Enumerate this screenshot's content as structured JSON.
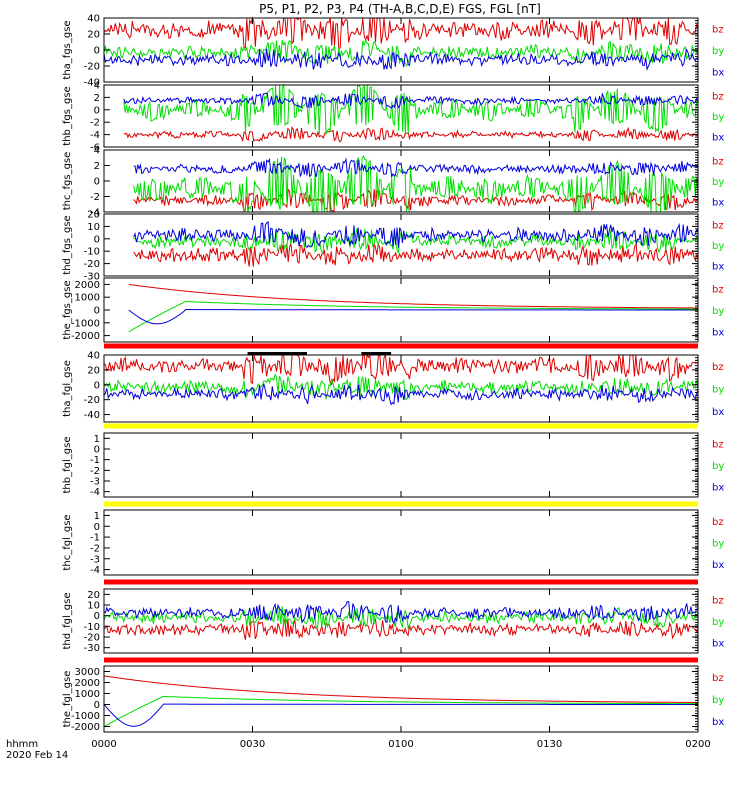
{
  "chart_data": {
    "type": "line",
    "title": "P5, P1, P2, P3, P4 (TH-A,B,C,D,E) FGS, FGL [nT]",
    "xaxis": {
      "label_line1": "hhmm",
      "label_line2": "2020 Feb 14",
      "ticks": [
        "0000",
        "0030",
        "0100",
        "0130",
        "0200"
      ],
      "range_minutes": [
        0,
        120
      ]
    },
    "colors": {
      "bz": "#dd0000",
      "by": "#00dd00",
      "bx": "#0000dd",
      "bar_red": "#ff0000",
      "bar_yellow": "#ffff00",
      "bar_black": "#000000"
    },
    "panels": [
      {
        "ylabel": "tha_fgs_gse",
        "ylim": [
          -40,
          40
        ],
        "yticks": [
          "40",
          "20",
          "0",
          "-20",
          "-40"
        ],
        "legend": [
          "bz",
          "by",
          "bx"
        ],
        "series": [
          {
            "name": "bz",
            "base": 25,
            "amp": 12,
            "noise": 6,
            "data_start": 0,
            "data_end": 120
          },
          {
            "name": "by",
            "base": -3,
            "amp": 8,
            "noise": 5,
            "data_start": 0,
            "data_end": 120
          },
          {
            "name": "bx",
            "base": -12,
            "amp": 6,
            "noise": 5,
            "data_start": 0,
            "data_end": 120
          }
        ]
      },
      {
        "ylabel": "thb_fgs_gse",
        "ylim": [
          -6,
          4
        ],
        "yticks": [
          "4",
          "2",
          "0",
          "-2",
          "-4",
          "-6"
        ],
        "legend": [
          "bz",
          "by",
          "bx"
        ],
        "series": [
          {
            "name": "bz",
            "base": -4,
            "amp": 0.6,
            "noise": 0.3,
            "data_start": 4,
            "data_end": 120
          },
          {
            "name": "by",
            "base": 0,
            "amp": 2.5,
            "noise": 0.4,
            "data_start": 4,
            "data_end": 120
          },
          {
            "name": "bx",
            "base": 1.5,
            "amp": 0.6,
            "noise": 0.3,
            "data_start": 4,
            "data_end": 120
          }
        ]
      },
      {
        "ylabel": "thc_fgs_gse",
        "ylim": [
          -4,
          4
        ],
        "yticks": [
          "4",
          "2",
          "0",
          "-2",
          "-4"
        ],
        "legend": [
          "bz",
          "by",
          "bx"
        ],
        "series": [
          {
            "name": "bz",
            "base": -2.5,
            "amp": 0.8,
            "noise": 0.3,
            "data_start": 6,
            "data_end": 120
          },
          {
            "name": "by",
            "base": -1,
            "amp": 2.5,
            "noise": 0.4,
            "data_start": 6,
            "data_end": 120
          },
          {
            "name": "bx",
            "base": 1.6,
            "amp": 0.6,
            "noise": 0.3,
            "data_start": 6,
            "data_end": 120
          }
        ]
      },
      {
        "ylabel": "thd_fgs_gse",
        "ylim": [
          -30,
          20
        ],
        "yticks": [
          "20",
          "10",
          "0",
          "-10",
          "-20",
          "-30"
        ],
        "legend": [
          "bz",
          "by",
          "bx"
        ],
        "series": [
          {
            "name": "bz",
            "base": -13,
            "amp": 4,
            "noise": 4,
            "data_start": 6,
            "data_end": 120
          },
          {
            "name": "by",
            "base": -2,
            "amp": 5,
            "noise": 3,
            "data_start": 6,
            "data_end": 120
          },
          {
            "name": "bx",
            "base": 3,
            "amp": 5,
            "noise": 3,
            "data_start": 6,
            "data_end": 120
          }
        ]
      },
      {
        "ylabel": "the_fgs_gse",
        "ylim": [
          -2500,
          2500
        ],
        "yticks": [
          "2000",
          "1000",
          "0",
          "-1000",
          "-2000"
        ],
        "legend": [
          "bz",
          "by",
          "bx"
        ],
        "series": [
          {
            "name": "bz",
            "base": 0,
            "amp": 0,
            "noise": 0,
            "data_start": 5,
            "data_end": 120,
            "decay_start": 2000,
            "decay_end": 80
          },
          {
            "name": "by",
            "base": 0,
            "amp": 0,
            "noise": 0,
            "data_start": 5,
            "data_end": 120,
            "decay_start": 900,
            "decay_end": 40,
            "ramp_from": -1700
          },
          {
            "name": "bx",
            "base": 0,
            "amp": 0,
            "noise": 0,
            "data_start": 5,
            "data_end": 120,
            "decay_start": 50,
            "decay_end": 0,
            "dip": -1200
          }
        ]
      },
      {
        "ylabel": "tha_fgl_gse",
        "ylim": [
          -50,
          40
        ],
        "yticks": [
          "40",
          "20",
          "0",
          "-20",
          "-40"
        ],
        "legend": [
          "bz",
          "by",
          "bx"
        ],
        "series": [
          {
            "name": "bz",
            "base": 25,
            "amp": 12,
            "noise": 6,
            "data_start": 0,
            "data_end": 120
          },
          {
            "name": "by",
            "base": -3,
            "amp": 8,
            "noise": 5,
            "data_start": 0,
            "data_end": 120
          },
          {
            "name": "bx",
            "base": -12,
            "amp": 6,
            "noise": 5,
            "data_start": 0,
            "data_end": 120
          }
        ]
      },
      {
        "ylabel": "thb_fgl_gse",
        "ylim": [
          -4.5,
          1.5
        ],
        "yticks": [
          "1",
          "0",
          "-1",
          "-2",
          "-3",
          "-4"
        ],
        "legend": [
          "bz",
          "by",
          "bx"
        ],
        "series": []
      },
      {
        "ylabel": "thc_fgl_gse",
        "ylim": [
          -4.5,
          1.5
        ],
        "yticks": [
          "1",
          "0",
          "-1",
          "-2",
          "-3",
          "-4"
        ],
        "legend": [
          "bz",
          "by",
          "bx"
        ],
        "series": []
      },
      {
        "ylabel": "thd_fgl_gse",
        "ylim": [
          -35,
          25
        ],
        "yticks": [
          "20",
          "10",
          "0",
          "-10",
          "-20",
          "-30"
        ],
        "legend": [
          "bz",
          "by",
          "bx"
        ],
        "series": [
          {
            "name": "bz",
            "base": -13,
            "amp": 4,
            "noise": 4,
            "data_start": 0,
            "data_end": 120
          },
          {
            "name": "by",
            "base": -2,
            "amp": 5,
            "noise": 3,
            "data_start": 0,
            "data_end": 120
          },
          {
            "name": "bx",
            "base": 3,
            "amp": 5,
            "noise": 3,
            "data_start": 0,
            "data_end": 120
          }
        ]
      },
      {
        "ylabel": "the_fgl_gse",
        "ylim": [
          -2500,
          3500
        ],
        "yticks": [
          "3000",
          "2000",
          "1000",
          "0",
          "-1000",
          "-2000"
        ],
        "legend": [
          "bz",
          "by",
          "bx"
        ],
        "series": [
          {
            "name": "bz",
            "base": 0,
            "amp": 0,
            "noise": 0,
            "data_start": 0,
            "data_end": 120,
            "decay_start": 2600,
            "decay_end": 80
          },
          {
            "name": "by",
            "base": 0,
            "amp": 0,
            "noise": 0,
            "data_start": 0,
            "data_end": 120,
            "decay_start": 1000,
            "decay_end": 40,
            "ramp_from": -2000
          },
          {
            "name": "bx",
            "base": 0,
            "amp": 0,
            "noise": 0,
            "data_start": 0,
            "data_end": 120,
            "decay_start": 50,
            "decay_end": 0,
            "dip": -2200
          }
        ]
      }
    ],
    "status_bars": [
      {
        "below_panel": 4,
        "color": "red"
      },
      {
        "below_panel": 5,
        "color": "yellow"
      },
      {
        "below_panel": 6,
        "color": "yellow"
      },
      {
        "below_panel": 7,
        "color": "red"
      },
      {
        "below_panel": 8,
        "color": "red"
      }
    ],
    "black_segments_minutes": [
      [
        29,
        41
      ],
      [
        52,
        58
      ]
    ]
  }
}
